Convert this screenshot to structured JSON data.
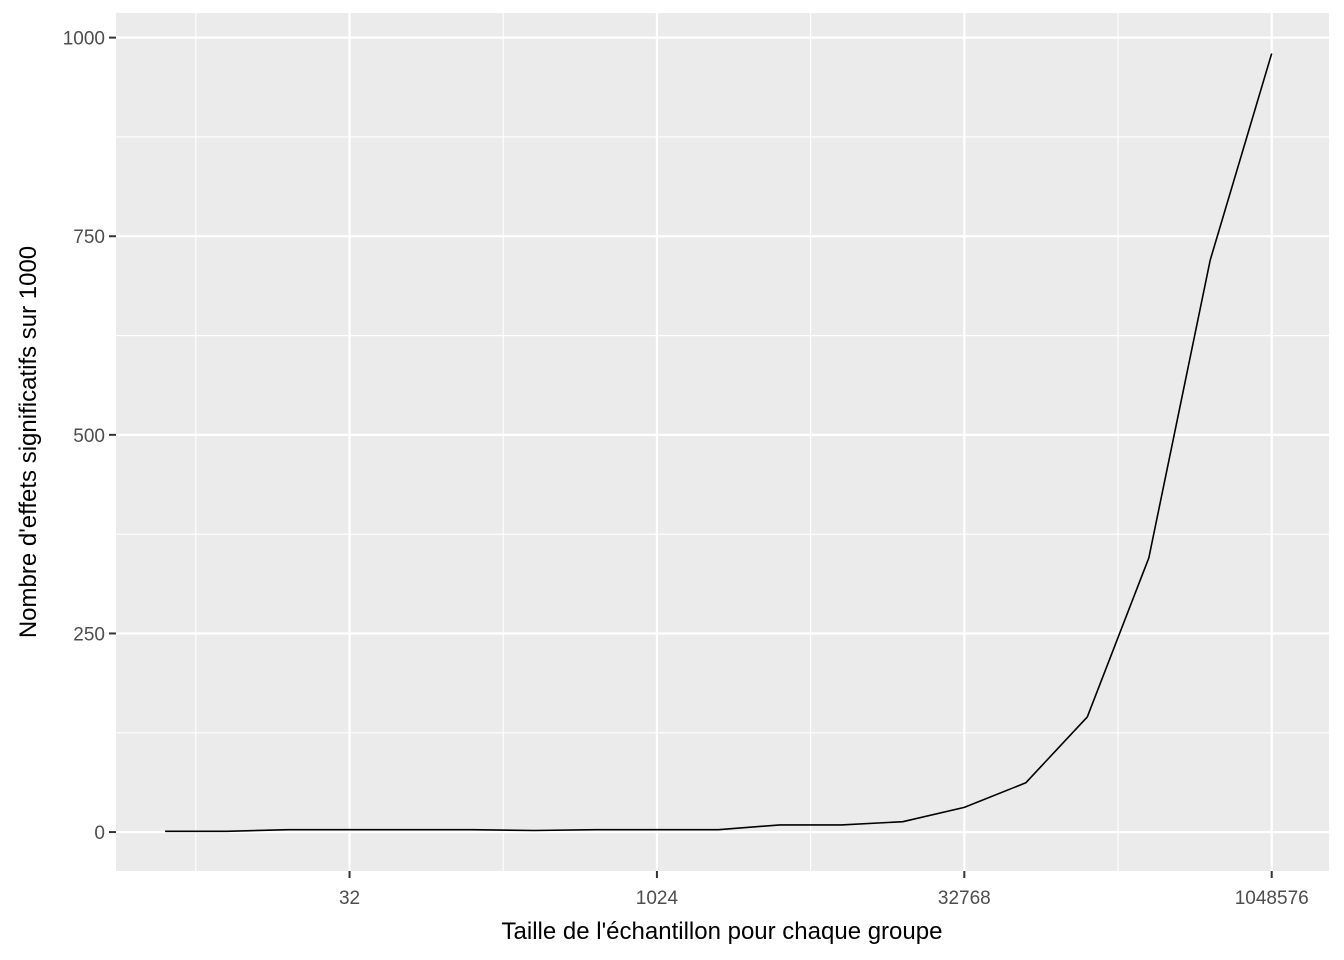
{
  "chart_data": {
    "type": "line",
    "title": "",
    "xlabel": "Taille de l'échantillon pour chaque groupe",
    "ylabel": "Nombre d'effets significatifs sur 1000",
    "x_scale": "log2",
    "x_ticks": [
      32,
      1024,
      32768,
      1048576
    ],
    "x_tick_labels": [
      "32",
      "1024",
      "32768",
      "1048576"
    ],
    "y_ticks": [
      0,
      250,
      500,
      750,
      1000
    ],
    "y_tick_labels": [
      "0",
      "250",
      "500",
      "750",
      "1000"
    ],
    "xlim": [
      2.3,
      2000000
    ],
    "ylim": [
      -49,
      1031
    ],
    "grid": true,
    "legend": "none",
    "series": [
      {
        "x": [
          4,
          8,
          16,
          32,
          64,
          128,
          256,
          512,
          1024,
          2048,
          4096,
          8192,
          16384,
          32768,
          65536,
          131072,
          262144,
          524288,
          1048576
        ],
        "values": [
          1,
          1,
          3,
          3,
          3,
          3,
          2,
          3,
          3,
          3,
          9,
          9,
          13,
          31,
          62,
          145,
          345,
          720,
          980
        ]
      }
    ],
    "colors": {
      "panel": "#ebebeb",
      "grid": "#ffffff",
      "line": "#000000",
      "tick_text": "#4d4d4d",
      "axis_title": "#000000"
    }
  }
}
